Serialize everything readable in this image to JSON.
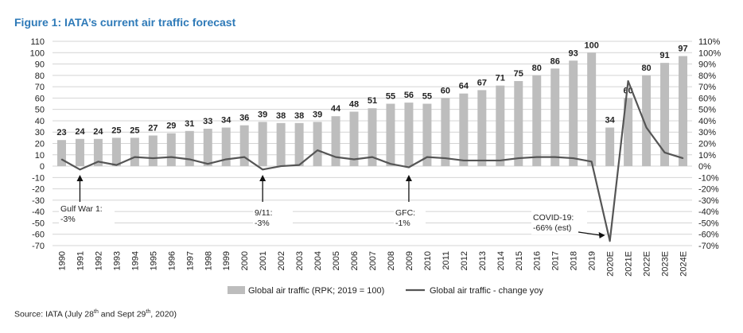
{
  "figure_title": "Figure 1: IATA’s current air traffic forecast",
  "source": {
    "prefix": "Source: IATA (July 28",
    "sup1": "th",
    "middle": " and Sept 29",
    "sup2": "th",
    "suffix": ", 2020)"
  },
  "colors": {
    "title": "#2e7ab8",
    "bars": "#bdbdbd",
    "line": "#555555",
    "grid": "#d4d4d4"
  },
  "chart_data": {
    "type": "bar",
    "categories": [
      "1990",
      "1991",
      "1992",
      "1993",
      "1994",
      "1995",
      "1996",
      "1997",
      "1998",
      "1999",
      "2000",
      "2001",
      "2002",
      "2003",
      "2004",
      "2005",
      "2006",
      "2007",
      "2008",
      "2009",
      "2010",
      "2011",
      "2012",
      "2013",
      "2014",
      "2015",
      "2016",
      "2017",
      "2018",
      "2019",
      "2020E",
      "2021E",
      "2022E",
      "2023E",
      "2024E"
    ],
    "series": [
      {
        "name": "Global air traffic (RPK; 2019 = 100)",
        "type": "bar",
        "axis": "left",
        "values": [
          23,
          24,
          24,
          25,
          25,
          27,
          29,
          31,
          33,
          34,
          36,
          39,
          38,
          38,
          39,
          44,
          48,
          51,
          55,
          56,
          55,
          60,
          64,
          67,
          71,
          75,
          80,
          86,
          93,
          100,
          34,
          60,
          80,
          91,
          97
        ]
      },
      {
        "name": "Global air traffic - change yoy",
        "type": "line",
        "axis": "right",
        "values": [
          6,
          -3,
          4,
          1,
          8,
          7,
          8,
          6,
          2,
          6,
          8,
          -3,
          0,
          1,
          14,
          8,
          6,
          8,
          2,
          -1,
          8,
          7,
          5,
          5,
          5,
          7,
          8,
          8,
          7,
          4,
          -66,
          75,
          34,
          12,
          7
        ]
      }
    ],
    "y_left": {
      "ylim": [
        -70,
        110
      ],
      "ticks": [
        110,
        100,
        90,
        80,
        70,
        60,
        50,
        40,
        30,
        20,
        10,
        0,
        -10,
        -20,
        -30,
        -40,
        -50,
        -60,
        -70
      ]
    },
    "y_right": {
      "ylim": [
        -70,
        110
      ],
      "unit": "%",
      "ticks": [
        "110%",
        "100%",
        "90%",
        "80%",
        "70%",
        "60%",
        "50%",
        "40%",
        "30%",
        "20%",
        "10%",
        "0%",
        "-10%",
        "-20%",
        "-30%",
        "-40%",
        "-50%",
        "-60%",
        "-70%"
      ]
    },
    "grid": true,
    "legend_position": "bottom",
    "annotations": [
      {
        "lines": [
          "Gulf War 1:",
          "-3%"
        ],
        "category": "1991",
        "arrow": "up"
      },
      {
        "lines": [
          "9/11:",
          "-3%"
        ],
        "category": "2001",
        "arrow": "up"
      },
      {
        "lines": [
          "GFC:",
          "-1%"
        ],
        "category": "2009",
        "arrow": "up"
      },
      {
        "lines": [
          "COVID-19:",
          "-66% (est)"
        ],
        "category": "2020E",
        "arrow": "right"
      }
    ]
  }
}
